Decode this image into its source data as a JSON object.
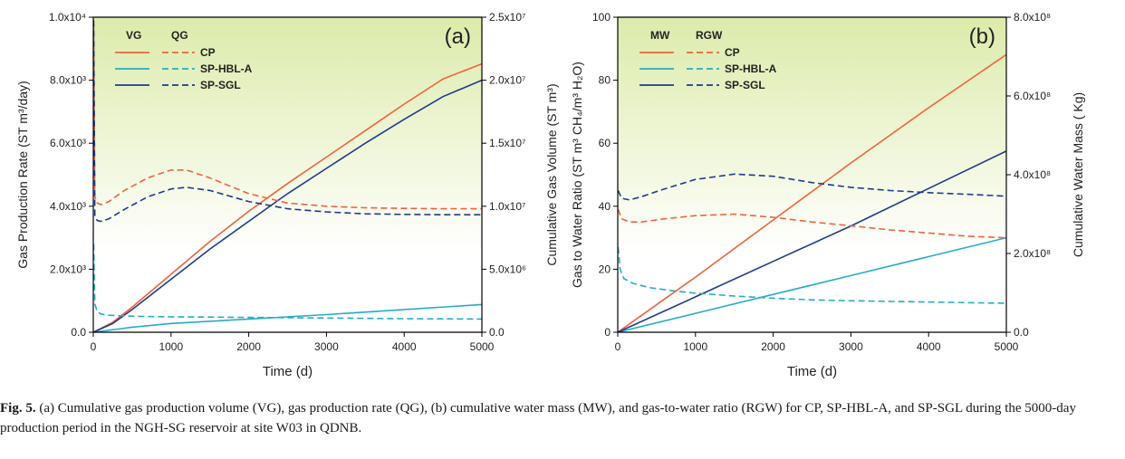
{
  "figure": {
    "caption_label": "Fig. 5.",
    "caption_text": "(a) Cumulative gas production volume (VG), gas production rate (QG), (b) cumulative water mass (MW), and gas-to-water ratio (RGW) for CP, SP-HBL-A, and SP-SGL during the 5000-day production period in the NGH-SG reservoir at site W03 in QDNB."
  },
  "colors": {
    "CP": "#f0623e",
    "SP-HBL-A": "#28acc6",
    "SP-SGL": "#1f3a8c",
    "bg_top": "#dcebaa",
    "bg_bottom": "#ffffff"
  },
  "chart_data": [
    {
      "type": "line",
      "panel_label": "(a)",
      "xlabel": "Time (d)",
      "xlim": [
        0,
        5000
      ],
      "xticks": [
        0,
        1000,
        2000,
        3000,
        4000,
        5000
      ],
      "xtick_labels": [
        "0",
        "1000",
        "2000",
        "3000",
        "4000",
        "5000"
      ],
      "ylabel_left": "Gas Production Rate (ST m³/day)",
      "ylim_left": [
        0,
        10000
      ],
      "yticks_left": [
        0,
        2000,
        4000,
        6000,
        8000,
        10000
      ],
      "ytick_labels_left": [
        "0.0",
        "2.0x10³",
        "4.0x10³",
        "6.0x10³",
        "8.0x10³",
        "1.0x10⁴"
      ],
      "ylabel_right": "Cumulative Gas Volume (ST m³)",
      "ylim_right": [
        0,
        25000000
      ],
      "yticks_right": [
        0,
        5000000,
        10000000,
        15000000,
        20000000,
        25000000
      ],
      "ytick_labels_right": [
        "0.0",
        "5.0x10⁶",
        "1.0x10⁷",
        "1.5x10⁷",
        "2.0x10⁷",
        "2.5x10⁷"
      ],
      "legend": {
        "header_solid": "VG",
        "header_dashed": "QG",
        "entries": [
          "CP",
          "SP-HBL-A",
          "SP-SGL"
        ],
        "location": "top-left"
      },
      "series": [
        {
          "name": "CP",
          "quantity": "VG",
          "axis": "right",
          "style": "solid",
          "x": [
            0,
            250,
            500,
            1000,
            1500,
            2000,
            2500,
            3000,
            3500,
            4000,
            4500,
            5000
          ],
          "values": [
            0,
            800000,
            2000000,
            4600000,
            7200000,
            9600000,
            11800000,
            13900000,
            16000000,
            18100000,
            20100000,
            21300000
          ]
        },
        {
          "name": "SP-HBL-A",
          "quantity": "VG",
          "axis": "right",
          "style": "solid",
          "x": [
            0,
            250,
            500,
            1000,
            2000,
            3000,
            4000,
            5000
          ],
          "values": [
            0,
            200000,
            400000,
            700000,
            1050000,
            1400000,
            1800000,
            2200000
          ]
        },
        {
          "name": "SP-SGL",
          "quantity": "VG",
          "axis": "right",
          "style": "solid",
          "x": [
            0,
            250,
            500,
            1000,
            1500,
            2000,
            2500,
            3000,
            3500,
            4000,
            4500,
            5000
          ],
          "values": [
            0,
            700000,
            1800000,
            4200000,
            6600000,
            8800000,
            11000000,
            13000000,
            15000000,
            16900000,
            18700000,
            20000000
          ]
        },
        {
          "name": "CP",
          "quantity": "QG",
          "axis": "left",
          "style": "dashed",
          "x": [
            5,
            20,
            50,
            100,
            200,
            400,
            700,
            1000,
            1200,
            1500,
            2000,
            2500,
            3000,
            3500,
            4000,
            4500,
            5000
          ],
          "values": [
            9800,
            4300,
            4100,
            4050,
            4150,
            4500,
            4900,
            5150,
            5150,
            4900,
            4400,
            4100,
            4000,
            3950,
            3930,
            3920,
            3920
          ]
        },
        {
          "name": "SP-HBL-A",
          "quantity": "QG",
          "axis": "left",
          "style": "dashed",
          "x": [
            5,
            20,
            50,
            100,
            200,
            500,
            1000,
            2000,
            3000,
            4000,
            5000
          ],
          "values": [
            2800,
            900,
            650,
            580,
            540,
            510,
            490,
            470,
            450,
            430,
            420
          ]
        },
        {
          "name": "SP-SGL",
          "quantity": "QG",
          "axis": "left",
          "style": "dashed",
          "x": [
            5,
            20,
            50,
            100,
            200,
            400,
            700,
            1000,
            1200,
            1500,
            2000,
            2500,
            3000,
            3500,
            4000,
            4500,
            5000
          ],
          "values": [
            9900,
            3700,
            3550,
            3520,
            3600,
            3900,
            4300,
            4550,
            4600,
            4500,
            4150,
            3920,
            3820,
            3760,
            3740,
            3730,
            3730
          ]
        }
      ]
    },
    {
      "type": "line",
      "panel_label": "(b)",
      "xlabel": "Time (d)",
      "xlim": [
        0,
        5000
      ],
      "xticks": [
        0,
        1000,
        2000,
        3000,
        4000,
        5000
      ],
      "xtick_labels": [
        "0",
        "1000",
        "2000",
        "3000",
        "4000",
        "5000"
      ],
      "ylabel_left": "Gas to Water Ratio (ST m³ CH₄/m³ H₂O)",
      "ylim_left": [
        0,
        100
      ],
      "yticks_left": [
        0,
        20,
        40,
        60,
        80,
        100
      ],
      "ytick_labels_left": [
        "0",
        "20",
        "40",
        "60",
        "80",
        "100"
      ],
      "ylabel_right": "Cumulative Water Mass ( Kg)",
      "ylim_right": [
        0,
        800000000
      ],
      "yticks_right": [
        0,
        200000000,
        400000000,
        600000000,
        800000000
      ],
      "ytick_labels_right": [
        "0.0",
        "2.0x10⁸",
        "4.0x10⁸",
        "6.0x10⁸",
        "8.0x10⁸"
      ],
      "legend": {
        "header_solid": "MW",
        "header_dashed": "RGW",
        "entries": [
          "CP",
          "SP-HBL-A",
          "SP-SGL"
        ],
        "location": "top-left"
      },
      "series": [
        {
          "name": "CP",
          "quantity": "MW",
          "axis": "right",
          "style": "solid",
          "x": [
            0,
            1000,
            2000,
            3000,
            4000,
            5000
          ],
          "values": [
            0,
            140000000,
            285000000,
            430000000,
            570000000,
            705000000
          ]
        },
        {
          "name": "SP-HBL-A",
          "quantity": "MW",
          "axis": "right",
          "style": "solid",
          "x": [
            0,
            1000,
            2000,
            3000,
            4000,
            5000
          ],
          "values": [
            0,
            48000000,
            96000000,
            144000000,
            192000000,
            240000000
          ]
        },
        {
          "name": "SP-SGL",
          "quantity": "MW",
          "axis": "right",
          "style": "solid",
          "x": [
            0,
            1000,
            2000,
            3000,
            4000,
            5000
          ],
          "values": [
            0,
            90000000,
            180000000,
            270000000,
            365000000,
            460000000
          ]
        },
        {
          "name": "CP",
          "quantity": "RGW",
          "axis": "left",
          "style": "dashed",
          "x": [
            5,
            50,
            150,
            300,
            600,
            1000,
            1500,
            2000,
            2500,
            3000,
            3500,
            4000,
            4500,
            5000
          ],
          "values": [
            39,
            36,
            35,
            35,
            36,
            37,
            37.5,
            36.5,
            35,
            33.8,
            32.5,
            31.5,
            30.5,
            30
          ]
        },
        {
          "name": "SP-HBL-A",
          "quantity": "RGW",
          "axis": "left",
          "style": "dashed",
          "x": [
            5,
            30,
            80,
            200,
            400,
            700,
            1000,
            1500,
            2000,
            2500,
            3000,
            3500,
            4000,
            4500,
            5000
          ],
          "values": [
            27,
            20,
            17,
            15.5,
            14.2,
            13.2,
            12.4,
            11.5,
            10.8,
            10.3,
            10,
            9.8,
            9.6,
            9.4,
            9.2
          ]
        },
        {
          "name": "SP-SGL",
          "quantity": "RGW",
          "axis": "left",
          "style": "dashed",
          "x": [
            5,
            50,
            150,
            300,
            600,
            1000,
            1500,
            2000,
            2500,
            3000,
            3500,
            4000,
            4500,
            5000
          ],
          "values": [
            45,
            42.5,
            42,
            43,
            45.5,
            48.5,
            50.2,
            49.5,
            47.5,
            46,
            45,
            44.3,
            43.8,
            43.2
          ]
        }
      ]
    }
  ]
}
